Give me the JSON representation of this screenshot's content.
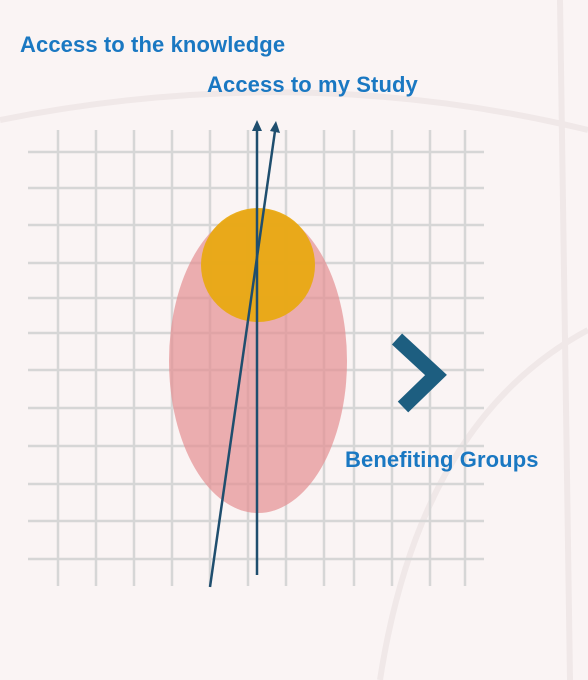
{
  "labels": {
    "knowledge": "Access to the knowledge",
    "study": "Access to my Study",
    "groups": "Benefiting Groups"
  },
  "colors": {
    "background": "#faf4f4",
    "grid": "#d6d6d6",
    "label_text": "#1a78c2",
    "arrow_line": "#1f4e6e",
    "ellipse_fill": "#e48e92",
    "circle_fill": "#e8a90f",
    "chevron": "#1d5e80"
  },
  "icons": {
    "arrow_head": "arrow-up-icon",
    "chevron": "chevron-right-icon"
  }
}
